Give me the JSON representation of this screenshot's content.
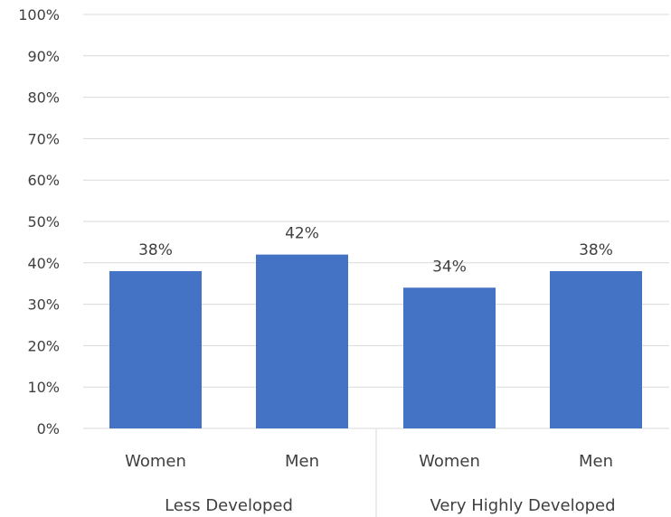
{
  "chart_data": {
    "type": "bar",
    "groups": [
      {
        "label": "Less Developed",
        "categories": [
          "Women",
          "Men"
        ]
      },
      {
        "label": "Very Highly Developed",
        "categories": [
          "Women",
          "Men"
        ]
      }
    ],
    "categories": [
      "Women",
      "Men",
      "Women",
      "Men"
    ],
    "values": [
      38,
      42,
      34,
      38
    ],
    "data_labels": [
      "38%",
      "42%",
      "34%",
      "38%"
    ],
    "ylim": [
      0,
      100
    ],
    "yticks": [
      "0%",
      "10%",
      "20%",
      "30%",
      "40%",
      "50%",
      "60%",
      "70%",
      "80%",
      "90%",
      "100%"
    ],
    "bar_color": "#4472c4",
    "grid": true,
    "legend": "none"
  }
}
